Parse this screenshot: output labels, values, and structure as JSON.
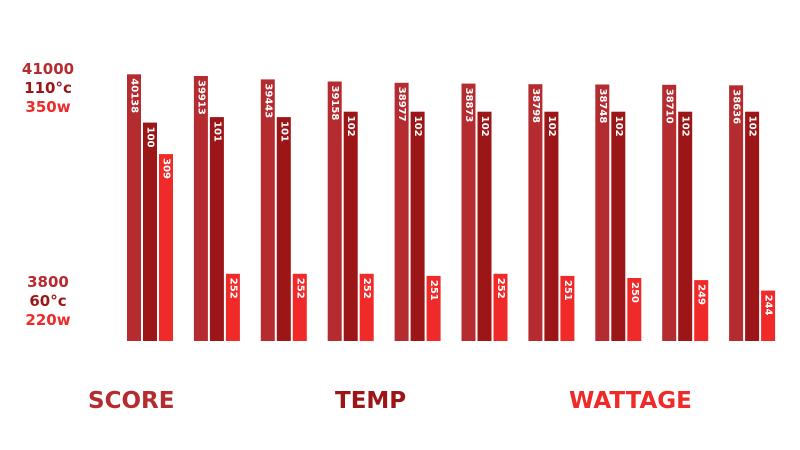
{
  "chart_data": {
    "type": "bar",
    "categories": [
      "",
      "",
      "",
      "",
      "",
      "",
      "",
      "",
      "",
      ""
    ],
    "series": [
      {
        "name": "SCORE",
        "color": "#b52c30",
        "values": [
          40138,
          39913,
          39443,
          39158,
          38977,
          38873,
          38798,
          38748,
          38710,
          38636
        ]
      },
      {
        "name": "TEMP",
        "color": "#9c1617",
        "values": [
          100,
          101,
          101,
          102,
          102,
          102,
          102,
          102,
          102,
          102
        ]
      },
      {
        "name": "WATTAGE",
        "color": "#f02929",
        "values": [
          309,
          252,
          252,
          252,
          251,
          252,
          251,
          250,
          249,
          244
        ]
      }
    ],
    "axes": [
      {
        "series": "SCORE",
        "min": 3800,
        "max": 41000,
        "min_label": "3800",
        "max_label": "41000"
      },
      {
        "series": "TEMP",
        "min": 60,
        "max": 110,
        "min_label": "60°c",
        "max_label": "110°c"
      },
      {
        "series": "WATTAGE",
        "min": 220,
        "max": 350,
        "min_label": "220w",
        "max_label": "350w"
      }
    ],
    "legend": [
      "SCORE",
      "TEMP",
      "WATTAGE"
    ],
    "legend_position": "bottom",
    "grid": false,
    "data_labels": "vertical, inside bars"
  }
}
